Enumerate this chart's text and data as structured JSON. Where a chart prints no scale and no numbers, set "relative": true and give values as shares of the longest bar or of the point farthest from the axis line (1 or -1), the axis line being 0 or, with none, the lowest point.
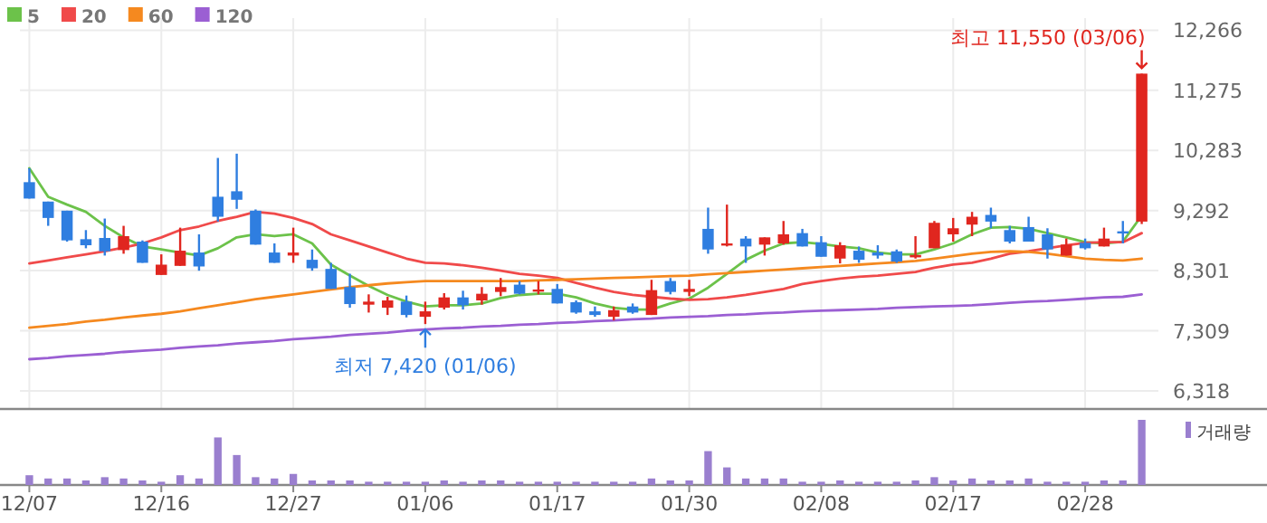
{
  "chart_data": [
    {
      "type": "candlestick",
      "categories": [
        "12/07",
        null,
        null,
        null,
        null,
        null,
        null,
        "12/16",
        null,
        null,
        null,
        null,
        null,
        null,
        "12/27",
        null,
        null,
        null,
        null,
        null,
        null,
        "01/06",
        null,
        null,
        null,
        null,
        null,
        null,
        "01/17",
        null,
        null,
        null,
        null,
        null,
        null,
        "01/30",
        null,
        null,
        null,
        null,
        null,
        null,
        "02/08",
        null,
        null,
        null,
        null,
        null,
        null,
        "02/17",
        null,
        null,
        null,
        null,
        null,
        null,
        "02/28",
        null,
        null,
        null
      ],
      "ohlc": [
        [
          9760,
          9990,
          9490,
          9490
        ],
        [
          9440,
          9440,
          9040,
          9170
        ],
        [
          9290,
          9290,
          8780,
          8800
        ],
        [
          8820,
          8970,
          8670,
          8720
        ],
        [
          8840,
          9160,
          8550,
          8620
        ],
        [
          8640,
          9040,
          8580,
          8870
        ],
        [
          8780,
          8800,
          8430,
          8430
        ],
        [
          8230,
          8570,
          8230,
          8400
        ],
        [
          8380,
          9010,
          8380,
          8630
        ],
        [
          8600,
          8900,
          8300,
          8370
        ],
        [
          9520,
          10160,
          9110,
          9190
        ],
        [
          9610,
          10230,
          9320,
          9470
        ],
        [
          9290,
          9310,
          8730,
          8730
        ],
        [
          8600,
          8750,
          8430,
          8430
        ],
        [
          8550,
          9010,
          8430,
          8600
        ],
        [
          8480,
          8650,
          8300,
          8340
        ],
        [
          8330,
          8430,
          8000,
          8000
        ],
        [
          8030,
          8250,
          7690,
          7750
        ],
        [
          7740,
          7910,
          7610,
          7790
        ],
        [
          7690,
          7870,
          7570,
          7810
        ],
        [
          7790,
          7890,
          7530,
          7570
        ],
        [
          7540,
          7790,
          7420,
          7630
        ],
        [
          7690,
          7930,
          7660,
          7860
        ],
        [
          7860,
          7970,
          7660,
          7730
        ],
        [
          7810,
          8030,
          7740,
          7920
        ],
        [
          7950,
          8180,
          7880,
          8030
        ],
        [
          8070,
          8130,
          7910,
          7920
        ],
        [
          7960,
          8130,
          7910,
          7990
        ],
        [
          8000,
          8080,
          7760,
          7760
        ],
        [
          7780,
          7810,
          7590,
          7610
        ],
        [
          7630,
          7710,
          7540,
          7570
        ],
        [
          7540,
          7710,
          7480,
          7650
        ],
        [
          7710,
          7760,
          7590,
          7610
        ],
        [
          7570,
          8150,
          7570,
          7980
        ],
        [
          8130,
          8180,
          7910,
          7950
        ],
        [
          7950,
          8150,
          7880,
          8000
        ],
        [
          8990,
          9340,
          8580,
          8650
        ],
        [
          8720,
          9390,
          8700,
          8750
        ],
        [
          8830,
          8870,
          8430,
          8700
        ],
        [
          8730,
          8850,
          8550,
          8850
        ],
        [
          8750,
          9120,
          8730,
          8900
        ],
        [
          8920,
          8990,
          8700,
          8700
        ],
        [
          8770,
          8870,
          8530,
          8530
        ],
        [
          8500,
          8770,
          8420,
          8720
        ],
        [
          8630,
          8700,
          8430,
          8480
        ],
        [
          8600,
          8720,
          8500,
          8550
        ],
        [
          8620,
          8650,
          8430,
          8450
        ],
        [
          8520,
          8870,
          8500,
          8560
        ],
        [
          8670,
          9120,
          8670,
          9090
        ],
        [
          8900,
          9170,
          8780,
          9000
        ],
        [
          9060,
          9270,
          8870,
          9190
        ],
        [
          9220,
          9340,
          9000,
          9110
        ],
        [
          8970,
          9040,
          8750,
          8780
        ],
        [
          9020,
          9190,
          8780,
          8780
        ],
        [
          8900,
          9000,
          8500,
          8650
        ],
        [
          8550,
          8830,
          8550,
          8730
        ],
        [
          8760,
          8830,
          8650,
          8670
        ],
        [
          8700,
          9010,
          8700,
          8830
        ],
        [
          8950,
          9120,
          8750,
          8920
        ],
        [
          9110,
          11550,
          9070,
          11550
        ]
      ],
      "colors": [
        "#2f7ee0",
        "#2f7ee0",
        "#2f7ee0",
        "#2f7ee0",
        "#2f7ee0",
        "#e0261f",
        "#2f7ee0",
        "#e0261f",
        "#e0261f",
        "#2f7ee0",
        "#2f7ee0",
        "#2f7ee0",
        "#2f7ee0",
        "#2f7ee0",
        "#e0261f",
        "#2f7ee0",
        "#2f7ee0",
        "#2f7ee0",
        "#e0261f",
        "#e0261f",
        "#2f7ee0",
        "#e0261f",
        "#e0261f",
        "#2f7ee0",
        "#e0261f",
        "#e0261f",
        "#2f7ee0",
        "#e0261f",
        "#2f7ee0",
        "#2f7ee0",
        "#2f7ee0",
        "#e0261f",
        "#2f7ee0",
        "#e0261f",
        "#2f7ee0",
        "#e0261f",
        "#2f7ee0",
        "#e0261f",
        "#2f7ee0",
        "#e0261f",
        "#e0261f",
        "#2f7ee0",
        "#2f7ee0",
        "#e0261f",
        "#2f7ee0",
        "#2f7ee0",
        "#2f7ee0",
        "#e0261f",
        "#e0261f",
        "#e0261f",
        "#e0261f",
        "#2f7ee0",
        "#2f7ee0",
        "#2f7ee0",
        "#2f7ee0",
        "#e0261f",
        "#2f7ee0",
        "#e0261f",
        "#2f7ee0",
        "#e0261f"
      ],
      "series": [
        {
          "name": "5",
          "type": "line",
          "color": "#6cc24a",
          "values": [
            9990,
            9520,
            9390,
            9270,
            9040,
            8850,
            8700,
            8650,
            8600,
            8550,
            8670,
            8850,
            8900,
            8870,
            8900,
            8750,
            8400,
            8220,
            8050,
            7900,
            7790,
            7710,
            7730,
            7730,
            7760,
            7850,
            7900,
            7920,
            7920,
            7860,
            7760,
            7690,
            7660,
            7660,
            7760,
            7840,
            8020,
            8250,
            8480,
            8630,
            8750,
            8770,
            8740,
            8700,
            8670,
            8600,
            8570,
            8570,
            8650,
            8750,
            8900,
            9010,
            9020,
            8990,
            8920,
            8850,
            8770,
            8750,
            8780,
            9210
          ]
        },
        {
          "name": "20",
          "type": "line",
          "color": "#f04a4a",
          "values": [
            8420,
            8470,
            8520,
            8570,
            8620,
            8680,
            8750,
            8850,
            8970,
            9030,
            9120,
            9190,
            9270,
            9240,
            9170,
            9070,
            8900,
            8800,
            8700,
            8600,
            8500,
            8430,
            8420,
            8390,
            8350,
            8300,
            8250,
            8220,
            8180,
            8100,
            8020,
            7950,
            7900,
            7870,
            7840,
            7820,
            7830,
            7860,
            7900,
            7950,
            8000,
            8080,
            8130,
            8170,
            8200,
            8220,
            8250,
            8280,
            8350,
            8400,
            8430,
            8500,
            8580,
            8620,
            8670,
            8720,
            8760,
            8770,
            8770,
            8920
          ]
        },
        {
          "name": "60",
          "type": "line",
          "color": "#f5891f",
          "values": [
            7360,
            7390,
            7420,
            7460,
            7490,
            7530,
            7560,
            7590,
            7630,
            7680,
            7730,
            7780,
            7830,
            7870,
            7910,
            7950,
            7990,
            8030,
            8060,
            8090,
            8110,
            8130,
            8130,
            8130,
            8130,
            8130,
            8130,
            8140,
            8150,
            8160,
            8170,
            8180,
            8190,
            8200,
            8210,
            8220,
            8240,
            8260,
            8280,
            8300,
            8320,
            8340,
            8360,
            8380,
            8400,
            8420,
            8440,
            8460,
            8500,
            8540,
            8580,
            8610,
            8620,
            8610,
            8580,
            8540,
            8500,
            8480,
            8470,
            8500
          ]
        },
        {
          "name": "120",
          "type": "line",
          "color": "#9b5fd3",
          "values": [
            6840,
            6860,
            6890,
            6910,
            6930,
            6960,
            6980,
            7000,
            7030,
            7050,
            7070,
            7100,
            7120,
            7140,
            7170,
            7190,
            7210,
            7240,
            7260,
            7280,
            7310,
            7330,
            7350,
            7360,
            7380,
            7390,
            7410,
            7420,
            7440,
            7450,
            7470,
            7480,
            7500,
            7510,
            7530,
            7540,
            7550,
            7570,
            7580,
            7600,
            7610,
            7630,
            7640,
            7650,
            7660,
            7670,
            7690,
            7700,
            7710,
            7720,
            7730,
            7750,
            7770,
            7790,
            7800,
            7820,
            7840,
            7860,
            7870,
            7910
          ]
        }
      ],
      "ylim": [
        6318,
        12266
      ],
      "yticks": [
        {
          "value": 6318,
          "label": "6,318"
        },
        {
          "value": 7309,
          "label": "7,309"
        },
        {
          "value": 8301,
          "label": "8,301"
        },
        {
          "value": 9292,
          "label": "9,292"
        },
        {
          "value": 10283,
          "label": "10,283"
        },
        {
          "value": 11275,
          "label": "11,275"
        },
        {
          "value": 12266,
          "label": "12,266"
        }
      ],
      "grid": true,
      "legend": "top left",
      "tick_labels": "y",
      "annotations": [
        "최고 11,550 (03/06)",
        {
          "text": "최저 7,420 (01/06)",
          "x": "01/06",
          "y": 7420
        }
      ]
    },
    {
      "type": "bar",
      "relative": true,
      "categories": [
        "12/07",
        null,
        null,
        null,
        null,
        null,
        null,
        "12/16",
        null,
        null,
        null,
        null,
        null,
        null,
        "12/27",
        null,
        null,
        null,
        null,
        null,
        null,
        "01/06",
        null,
        null,
        null,
        null,
        null,
        null,
        "01/17",
        null,
        null,
        null,
        null,
        null,
        null,
        "01/30",
        null,
        null,
        null,
        null,
        null,
        null,
        "02/08",
        null,
        null,
        null,
        null,
        null,
        null,
        "02/17",
        null,
        null,
        null,
        null,
        null,
        null,
        "02/28",
        null,
        null,
        null
      ],
      "series": [
        {
          "name": "거래량",
          "color": "#9a7fcf",
          "values": [
            0.15,
            0.1,
            0.1,
            0.07,
            0.12,
            0.1,
            0.07,
            0.05,
            0.15,
            0.1,
            0.73,
            0.46,
            0.12,
            0.1,
            0.17,
            0.07,
            0.07,
            0.07,
            0.05,
            0.05,
            0.05,
            0.05,
            0.07,
            0.05,
            0.07,
            0.07,
            0.05,
            0.05,
            0.05,
            0.05,
            0.05,
            0.05,
            0.05,
            0.1,
            0.07,
            0.07,
            0.52,
            0.27,
            0.1,
            0.1,
            0.1,
            0.05,
            0.05,
            0.07,
            0.05,
            0.05,
            0.05,
            0.07,
            0.12,
            0.07,
            0.1,
            0.07,
            0.07,
            0.1,
            0.05,
            0.05,
            0.05,
            0.07,
            0.07,
            1
          ]
        }
      ],
      "legend": "top right",
      "tick_labels": "x"
    }
  ]
}
